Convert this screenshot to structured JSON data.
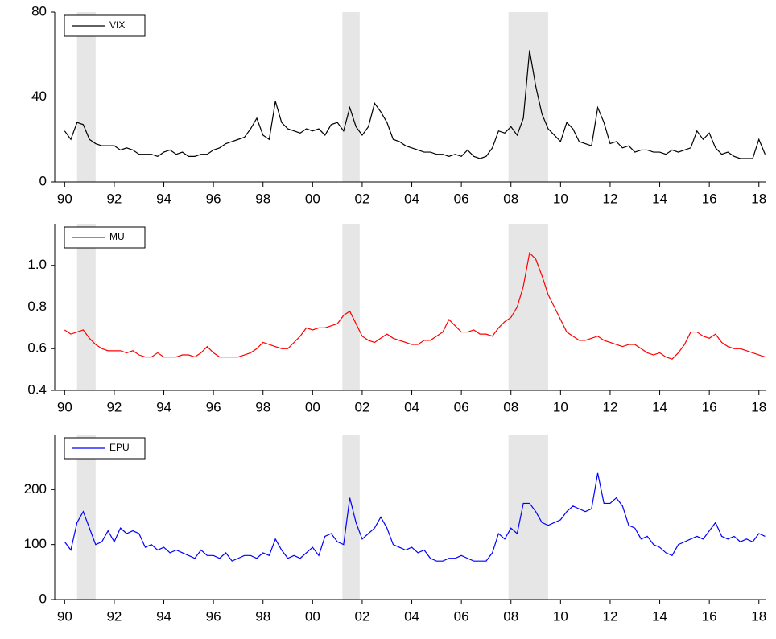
{
  "chart_data": [
    {
      "type": "line",
      "x": [
        1990,
        1990.25,
        1990.5,
        1990.75,
        1991,
        1991.25,
        1991.5,
        1991.75,
        1992,
        1992.25,
        1992.5,
        1992.75,
        1993,
        1993.25,
        1993.5,
        1993.75,
        1994,
        1994.25,
        1994.5,
        1994.75,
        1995,
        1995.25,
        1995.5,
        1995.75,
        1996,
        1996.25,
        1996.5,
        1996.75,
        1997,
        1997.25,
        1997.5,
        1997.75,
        1998,
        1998.25,
        1998.5,
        1998.75,
        1999,
        1999.25,
        1999.5,
        1999.75,
        2000,
        2000.25,
        2000.5,
        2000.75,
        2001,
        2001.25,
        2001.5,
        2001.75,
        2002,
        2002.25,
        2002.5,
        2002.75,
        2003,
        2003.25,
        2003.5,
        2003.75,
        2004,
        2004.25,
        2004.5,
        2004.75,
        2005,
        2005.25,
        2005.5,
        2005.75,
        2006,
        2006.25,
        2006.5,
        2006.75,
        2007,
        2007.25,
        2007.5,
        2007.75,
        2008,
        2008.25,
        2008.5,
        2008.75,
        2009,
        2009.25,
        2009.5,
        2009.75,
        2010,
        2010.25,
        2010.5,
        2010.75,
        2011,
        2011.25,
        2011.5,
        2011.75,
        2012,
        2012.25,
        2012.5,
        2012.75,
        2013,
        2013.25,
        2013.5,
        2013.75,
        2014,
        2014.25,
        2014.5,
        2014.75,
        2015,
        2015.25,
        2015.5,
        2015.75,
        2016,
        2016.25,
        2016.5,
        2016.75,
        2017,
        2017.25,
        2017.5,
        2017.75,
        2018,
        2018.25
      ],
      "series": [
        {
          "name": "VIX",
          "color": "#000000",
          "values": [
            24,
            20,
            28,
            27,
            20,
            18,
            17,
            17,
            17,
            15,
            16,
            15,
            13,
            13,
            13,
            12,
            14,
            15,
            13,
            14,
            12,
            12,
            13,
            13,
            15,
            16,
            18,
            19,
            20,
            21,
            25,
            30,
            22,
            20,
            38,
            28,
            25,
            24,
            23,
            25,
            24,
            25,
            22,
            27,
            28,
            24,
            35,
            26,
            22,
            26,
            37,
            33,
            28,
            20,
            19,
            17,
            16,
            15,
            14,
            14,
            13,
            13,
            12,
            13,
            12,
            15,
            12,
            11,
            12,
            16,
            24,
            23,
            26,
            22,
            30,
            62,
            45,
            32,
            25,
            22,
            19,
            28,
            25,
            19,
            18,
            17,
            35,
            28,
            18,
            19,
            16,
            17,
            14,
            15,
            15,
            14,
            14,
            13,
            15,
            14,
            15,
            16,
            24,
            20,
            23,
            16,
            13,
            14,
            12,
            11,
            11,
            11,
            20,
            13
          ]
        }
      ],
      "xlim": [
        1989.6,
        2018.3
      ],
      "xticks": [
        {
          "value": 1990,
          "label": "90"
        },
        {
          "value": 1992,
          "label": "92"
        },
        {
          "value": 1994,
          "label": "94"
        },
        {
          "value": 1996,
          "label": "96"
        },
        {
          "value": 1998,
          "label": "98"
        },
        {
          "value": 2000,
          "label": "00"
        },
        {
          "value": 2002,
          "label": "02"
        },
        {
          "value": 2004,
          "label": "04"
        },
        {
          "value": 2006,
          "label": "06"
        },
        {
          "value": 2008,
          "label": "08"
        },
        {
          "value": 2010,
          "label": "10"
        },
        {
          "value": 2012,
          "label": "12"
        },
        {
          "value": 2014,
          "label": "14"
        },
        {
          "value": 2016,
          "label": "16"
        },
        {
          "value": 2018,
          "label": "18"
        }
      ],
      "ylim": [
        0,
        80
      ],
      "yticks": [
        0,
        40,
        80
      ],
      "recessions": [
        [
          1990.5,
          1991.25
        ],
        [
          2001.2,
          2001.9
        ],
        [
          2007.9,
          2009.5
        ]
      ],
      "shade_color": "#e6e6e6",
      "legend": "upper left"
    },
    {
      "type": "line",
      "x": [
        1990,
        1990.25,
        1990.5,
        1990.75,
        1991,
        1991.25,
        1991.5,
        1991.75,
        1992,
        1992.25,
        1992.5,
        1992.75,
        1993,
        1993.25,
        1993.5,
        1993.75,
        1994,
        1994.25,
        1994.5,
        1994.75,
        1995,
        1995.25,
        1995.5,
        1995.75,
        1996,
        1996.25,
        1996.5,
        1996.75,
        1997,
        1997.25,
        1997.5,
        1997.75,
        1998,
        1998.25,
        1998.5,
        1998.75,
        1999,
        1999.25,
        1999.5,
        1999.75,
        2000,
        2000.25,
        2000.5,
        2000.75,
        2001,
        2001.25,
        2001.5,
        2001.75,
        2002,
        2002.25,
        2002.5,
        2002.75,
        2003,
        2003.25,
        2003.5,
        2003.75,
        2004,
        2004.25,
        2004.5,
        2004.75,
        2005,
        2005.25,
        2005.5,
        2005.75,
        2006,
        2006.25,
        2006.5,
        2006.75,
        2007,
        2007.25,
        2007.5,
        2007.75,
        2008,
        2008.25,
        2008.5,
        2008.75,
        2009,
        2009.25,
        2009.5,
        2009.75,
        2010,
        2010.25,
        2010.5,
        2010.75,
        2011,
        2011.25,
        2011.5,
        2011.75,
        2012,
        2012.25,
        2012.5,
        2012.75,
        2013,
        2013.25,
        2013.5,
        2013.75,
        2014,
        2014.25,
        2014.5,
        2014.75,
        2015,
        2015.25,
        2015.5,
        2015.75,
        2016,
        2016.25,
        2016.5,
        2016.75,
        2017,
        2017.25,
        2017.5,
        2017.75,
        2018,
        2018.25
      ],
      "series": [
        {
          "name": "MU",
          "color": "#ff0000",
          "values": [
            0.69,
            0.67,
            0.68,
            0.69,
            0.65,
            0.62,
            0.6,
            0.59,
            0.59,
            0.59,
            0.58,
            0.59,
            0.57,
            0.56,
            0.56,
            0.58,
            0.56,
            0.56,
            0.56,
            0.57,
            0.57,
            0.56,
            0.58,
            0.61,
            0.58,
            0.56,
            0.56,
            0.56,
            0.56,
            0.57,
            0.58,
            0.6,
            0.63,
            0.62,
            0.61,
            0.6,
            0.6,
            0.63,
            0.66,
            0.7,
            0.69,
            0.7,
            0.7,
            0.71,
            0.72,
            0.76,
            0.78,
            0.72,
            0.66,
            0.64,
            0.63,
            0.65,
            0.67,
            0.65,
            0.64,
            0.63,
            0.62,
            0.62,
            0.64,
            0.64,
            0.66,
            0.68,
            0.74,
            0.71,
            0.68,
            0.68,
            0.69,
            0.67,
            0.67,
            0.66,
            0.7,
            0.73,
            0.75,
            0.8,
            0.9,
            1.06,
            1.03,
            0.95,
            0.86,
            0.8,
            0.74,
            0.68,
            0.66,
            0.64,
            0.64,
            0.65,
            0.66,
            0.64,
            0.63,
            0.62,
            0.61,
            0.62,
            0.62,
            0.6,
            0.58,
            0.57,
            0.58,
            0.56,
            0.55,
            0.58,
            0.62,
            0.68,
            0.68,
            0.66,
            0.65,
            0.67,
            0.63,
            0.61,
            0.6,
            0.6,
            0.59,
            0.58,
            0.57,
            0.56
          ]
        }
      ],
      "xlim": [
        1989.6,
        2018.3
      ],
      "xticks": [
        {
          "value": 1990,
          "label": "90"
        },
        {
          "value": 1992,
          "label": "92"
        },
        {
          "value": 1994,
          "label": "94"
        },
        {
          "value": 1996,
          "label": "96"
        },
        {
          "value": 1998,
          "label": "98"
        },
        {
          "value": 2000,
          "label": "00"
        },
        {
          "value": 2002,
          "label": "02"
        },
        {
          "value": 2004,
          "label": "04"
        },
        {
          "value": 2006,
          "label": "06"
        },
        {
          "value": 2008,
          "label": "08"
        },
        {
          "value": 2010,
          "label": "10"
        },
        {
          "value": 2012,
          "label": "12"
        },
        {
          "value": 2014,
          "label": "14"
        },
        {
          "value": 2016,
          "label": "16"
        },
        {
          "value": 2018,
          "label": "18"
        }
      ],
      "ylim": [
        0.4,
        1.2
      ],
      "yticks": [
        0.4,
        0.6,
        0.8,
        {
          "value": 1,
          "label": "1.0"
        }
      ],
      "recessions": [
        [
          1990.5,
          1991.25
        ],
        [
          2001.2,
          2001.9
        ],
        [
          2007.9,
          2009.5
        ]
      ],
      "shade_color": "#e6e6e6",
      "legend": "upper left"
    },
    {
      "type": "line",
      "x": [
        1990,
        1990.25,
        1990.5,
        1990.75,
        1991,
        1991.25,
        1991.5,
        1991.75,
        1992,
        1992.25,
        1992.5,
        1992.75,
        1993,
        1993.25,
        1993.5,
        1993.75,
        1994,
        1994.25,
        1994.5,
        1994.75,
        1995,
        1995.25,
        1995.5,
        1995.75,
        1996,
        1996.25,
        1996.5,
        1996.75,
        1997,
        1997.25,
        1997.5,
        1997.75,
        1998,
        1998.25,
        1998.5,
        1998.75,
        1999,
        1999.25,
        1999.5,
        1999.75,
        2000,
        2000.25,
        2000.5,
        2000.75,
        2001,
        2001.25,
        2001.5,
        2001.75,
        2002,
        2002.25,
        2002.5,
        2002.75,
        2003,
        2003.25,
        2003.5,
        2003.75,
        2004,
        2004.25,
        2004.5,
        2004.75,
        2005,
        2005.25,
        2005.5,
        2005.75,
        2006,
        2006.25,
        2006.5,
        2006.75,
        2007,
        2007.25,
        2007.5,
        2007.75,
        2008,
        2008.25,
        2008.5,
        2008.75,
        2009,
        2009.25,
        2009.5,
        2009.75,
        2010,
        2010.25,
        2010.5,
        2010.75,
        2011,
        2011.25,
        2011.5,
        2011.75,
        2012,
        2012.25,
        2012.5,
        2012.75,
        2013,
        2013.25,
        2013.5,
        2013.75,
        2014,
        2014.25,
        2014.5,
        2014.75,
        2015,
        2015.25,
        2015.5,
        2015.75,
        2016,
        2016.25,
        2016.5,
        2016.75,
        2017,
        2017.25,
        2017.5,
        2017.75,
        2018,
        2018.25
      ],
      "series": [
        {
          "name": "EPU",
          "color": "#0000ff",
          "values": [
            105,
            90,
            140,
            160,
            130,
            100,
            105,
            125,
            105,
            130,
            120,
            125,
            120,
            95,
            100,
            90,
            95,
            85,
            90,
            85,
            80,
            75,
            90,
            80,
            80,
            75,
            85,
            70,
            75,
            80,
            80,
            75,
            85,
            80,
            110,
            90,
            75,
            80,
            75,
            85,
            95,
            80,
            115,
            120,
            105,
            100,
            185,
            140,
            110,
            120,
            130,
            150,
            130,
            100,
            95,
            90,
            95,
            85,
            90,
            75,
            70,
            70,
            75,
            75,
            80,
            75,
            70,
            70,
            70,
            85,
            120,
            110,
            130,
            120,
            175,
            175,
            160,
            140,
            135,
            140,
            145,
            160,
            170,
            165,
            160,
            165,
            230,
            175,
            175,
            185,
            170,
            135,
            130,
            110,
            115,
            100,
            95,
            85,
            80,
            100,
            105,
            110,
            115,
            110,
            125,
            140,
            115,
            110,
            115,
            105,
            110,
            105,
            120,
            115
          ]
        }
      ],
      "xlim": [
        1989.6,
        2018.3
      ],
      "xticks": [
        {
          "value": 1990,
          "label": "90"
        },
        {
          "value": 1992,
          "label": "92"
        },
        {
          "value": 1994,
          "label": "94"
        },
        {
          "value": 1996,
          "label": "96"
        },
        {
          "value": 1998,
          "label": "98"
        },
        {
          "value": 2000,
          "label": "00"
        },
        {
          "value": 2002,
          "label": "02"
        },
        {
          "value": 2004,
          "label": "04"
        },
        {
          "value": 2006,
          "label": "06"
        },
        {
          "value": 2008,
          "label": "08"
        },
        {
          "value": 2010,
          "label": "10"
        },
        {
          "value": 2012,
          "label": "12"
        },
        {
          "value": 2014,
          "label": "14"
        },
        {
          "value": 2016,
          "label": "16"
        },
        {
          "value": 2018,
          "label": "18"
        }
      ],
      "ylim": [
        0,
        300
      ],
      "yticks": [
        0,
        100,
        200
      ],
      "recessions": [
        [
          1990.5,
          1991.25
        ],
        [
          2001.2,
          2001.9
        ],
        [
          2007.9,
          2009.5
        ]
      ],
      "shade_color": "#e6e6e6",
      "legend": "upper left"
    }
  ]
}
